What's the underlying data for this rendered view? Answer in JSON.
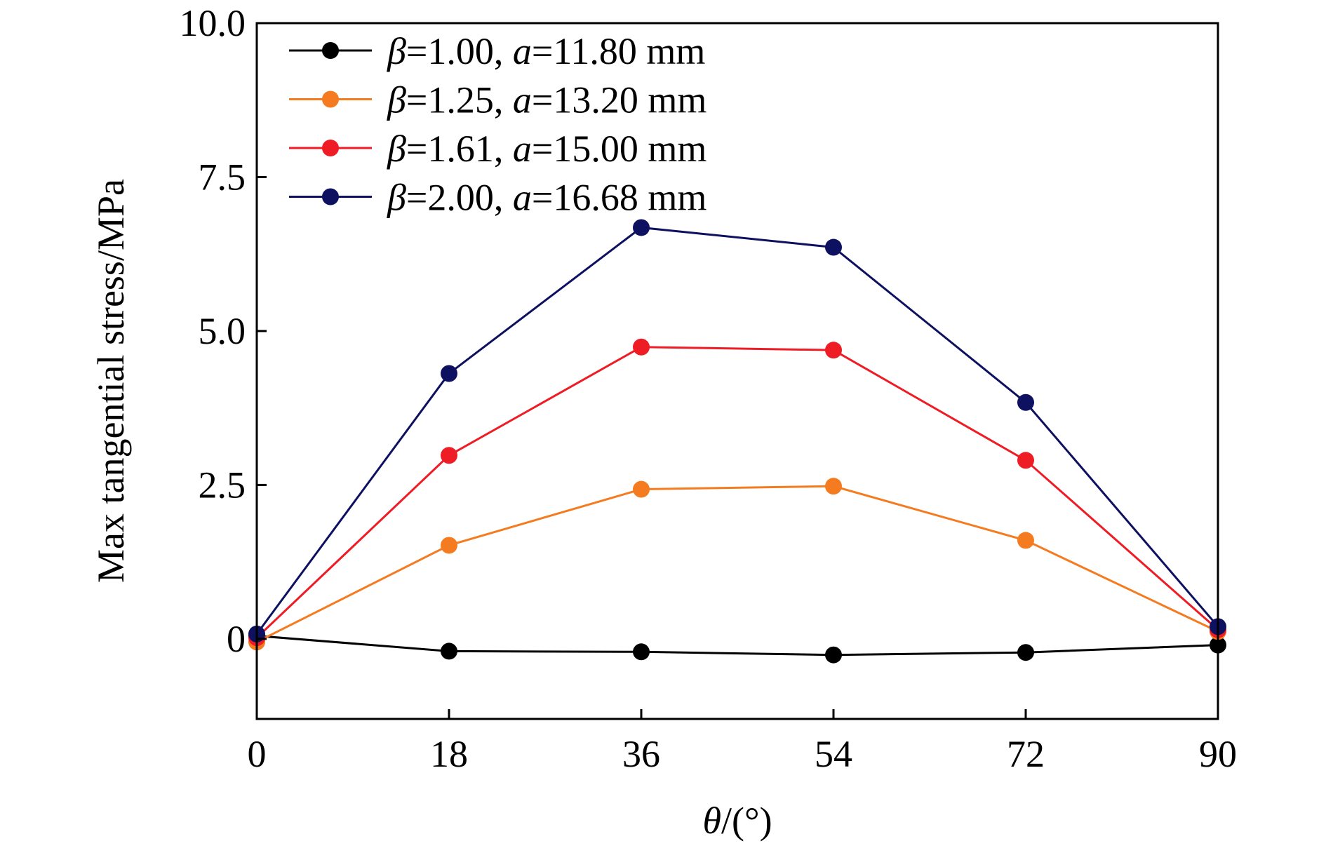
{
  "chart_data": {
    "type": "line",
    "x": [
      0,
      18,
      36,
      54,
      72,
      90
    ],
    "xticks": [
      "0",
      "18",
      "36",
      "54",
      "72",
      "90"
    ],
    "yticks": [
      "0",
      "2.5",
      "5.0",
      "7.5",
      "10.0"
    ],
    "xlim": [
      0,
      90
    ],
    "ylim": [
      -1.3,
      10.0
    ],
    "xlabel": {
      "symbol": "θ",
      "rest": "/(°)"
    },
    "ylabel": "Max tangential stress/MPa",
    "grid": false,
    "legend_position": "top-left",
    "series": [
      {
        "name": "β=1.00, a=11.80 mm",
        "legend": {
          "beta_sym": "β",
          "beta_val": "=1.00, ",
          "a_sym": "a",
          "a_val": "=11.80 mm"
        },
        "color": "#000000",
        "values": [
          0.05,
          -0.2,
          -0.21,
          -0.26,
          -0.22,
          -0.1
        ]
      },
      {
        "name": "β=1.25, a=13.20 mm",
        "legend": {
          "beta_sym": "β",
          "beta_val": "=1.25, ",
          "a_sym": "a",
          "a_val": "=13.20 mm"
        },
        "color": "#f47b20",
        "values": [
          -0.05,
          1.52,
          2.43,
          2.48,
          1.6,
          0.12
        ]
      },
      {
        "name": "β=1.61, a=15.00 mm",
        "legend": {
          "beta_sym": "β",
          "beta_val": "=1.61, ",
          "a_sym": "a",
          "a_val": "=15.00 mm"
        },
        "color": "#ee1c25",
        "values": [
          0.02,
          2.98,
          4.74,
          4.69,
          2.9,
          0.15
        ]
      },
      {
        "name": "β=2.00, a=16.68 mm",
        "legend": {
          "beta_sym": "β",
          "beta_val": "=2.00, ",
          "a_sym": "a",
          "a_val": "=16.68 mm"
        },
        "color": "#0e1160",
        "values": [
          0.08,
          4.31,
          6.68,
          6.36,
          3.84,
          0.2
        ]
      }
    ]
  }
}
